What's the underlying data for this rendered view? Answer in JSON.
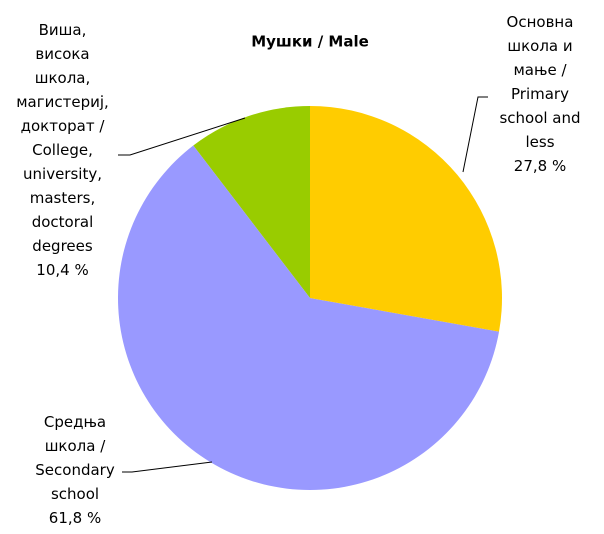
{
  "chart_data": {
    "type": "pie",
    "title": "Мушки / Male",
    "categories": [
      "Основна\nшкола и\nмање /\nPrimary\nschool and\nless",
      "Средња\nшкола /\nSecondary\nschool",
      "Виша,\nвисока\nшкола,\nмагистериј,\nдокторат /\nCollege,\nuniversity,\nmasters,\ndoctoral\ndegrees"
    ],
    "values": [
      27.8,
      61.8,
      10.4
    ],
    "value_labels": [
      "27,8 %",
      "61,8 %",
      "10,4 %"
    ],
    "colors": [
      "#ffcc00",
      "#9999ff",
      "#99cc00"
    ]
  }
}
